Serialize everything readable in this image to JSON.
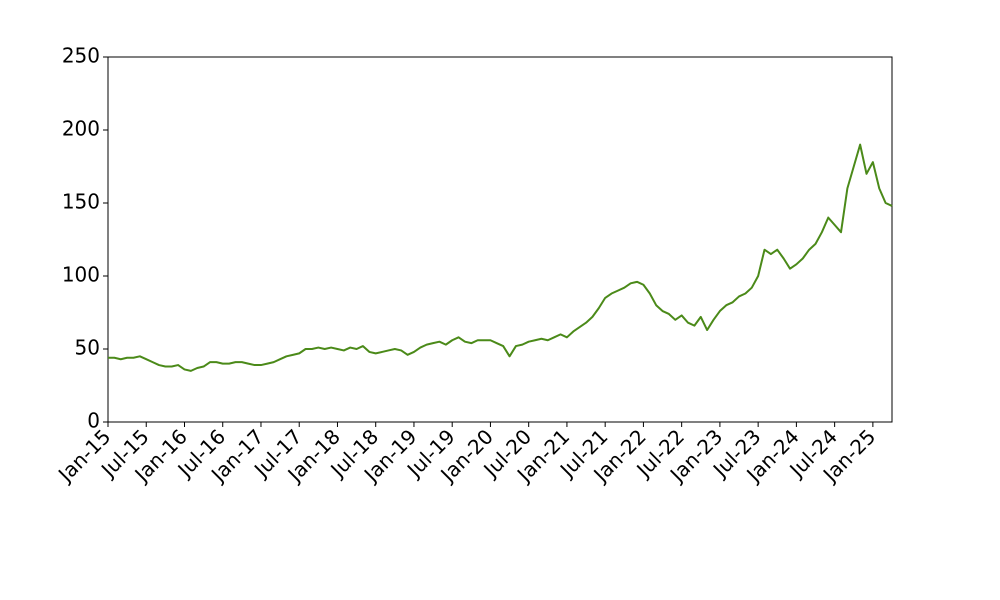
{
  "chart_data": {
    "type": "line",
    "x": [
      "2015-01",
      "2015-02",
      "2015-03",
      "2015-04",
      "2015-05",
      "2015-06",
      "2015-07",
      "2015-08",
      "2015-09",
      "2015-10",
      "2015-11",
      "2015-12",
      "2016-01",
      "2016-02",
      "2016-03",
      "2016-04",
      "2016-05",
      "2016-06",
      "2016-07",
      "2016-08",
      "2016-09",
      "2016-10",
      "2016-11",
      "2016-12",
      "2017-01",
      "2017-02",
      "2017-03",
      "2017-04",
      "2017-05",
      "2017-06",
      "2017-07",
      "2017-08",
      "2017-09",
      "2017-10",
      "2017-11",
      "2017-12",
      "2018-01",
      "2018-02",
      "2018-03",
      "2018-04",
      "2018-05",
      "2018-06",
      "2018-07",
      "2018-08",
      "2018-09",
      "2018-10",
      "2018-11",
      "2018-12",
      "2019-01",
      "2019-02",
      "2019-03",
      "2019-04",
      "2019-05",
      "2019-06",
      "2019-07",
      "2019-08",
      "2019-09",
      "2019-10",
      "2019-11",
      "2019-12",
      "2020-01",
      "2020-02",
      "2020-03",
      "2020-04",
      "2020-05",
      "2020-06",
      "2020-07",
      "2020-08",
      "2020-09",
      "2020-10",
      "2020-11",
      "2020-12",
      "2021-01",
      "2021-02",
      "2021-03",
      "2021-04",
      "2021-05",
      "2021-06",
      "2021-07",
      "2021-08",
      "2021-09",
      "2021-10",
      "2021-11",
      "2021-12",
      "2022-01",
      "2022-02",
      "2022-03",
      "2022-04",
      "2022-05",
      "2022-06",
      "2022-07",
      "2022-08",
      "2022-09",
      "2022-10",
      "2022-11",
      "2022-12",
      "2023-01",
      "2023-02",
      "2023-03",
      "2023-04",
      "2023-05",
      "2023-06",
      "2023-07",
      "2023-08",
      "2023-09",
      "2023-10",
      "2023-11",
      "2023-12",
      "2024-01",
      "2024-02",
      "2024-03",
      "2024-04",
      "2024-05",
      "2024-06",
      "2024-07",
      "2024-08",
      "2024-09",
      "2024-10",
      "2024-11",
      "2024-12",
      "2025-01",
      "2025-02",
      "2025-03",
      "2025-04"
    ],
    "series": [
      {
        "color": "#4b8a19",
        "values": [
          44,
          44,
          43,
          44,
          44,
          45,
          43,
          41,
          39,
          38,
          38,
          39,
          36,
          35,
          37,
          38,
          41,
          41,
          40,
          40,
          41,
          41,
          40,
          39,
          39,
          40,
          41,
          43,
          45,
          46,
          47,
          50,
          50,
          51,
          50,
          51,
          50,
          49,
          51,
          50,
          52,
          48,
          47,
          48,
          49,
          50,
          49,
          46,
          48,
          51,
          53,
          54,
          55,
          53,
          56,
          58,
          55,
          54,
          56,
          56,
          56,
          54,
          52,
          45,
          52,
          53,
          55,
          56,
          57,
          56,
          58,
          60,
          58,
          62,
          65,
          68,
          72,
          78,
          85,
          88,
          90,
          92,
          95,
          96,
          94,
          88,
          80,
          76,
          74,
          70,
          73,
          68,
          66,
          72,
          63,
          70,
          76,
          80,
          82,
          86,
          88,
          92,
          100,
          118,
          115,
          118,
          112,
          105,
          108,
          112,
          118,
          122,
          130,
          140,
          135,
          130,
          160,
          175,
          190,
          170,
          178,
          160,
          150,
          148
        ]
      }
    ],
    "xlim": [
      "2015-01",
      "2025-04"
    ],
    "xticks": [
      {
        "value": "2015-01",
        "label": "Jan-15"
      },
      {
        "value": "2015-07",
        "label": "Jul-15"
      },
      {
        "value": "2016-01",
        "label": "Jan-16"
      },
      {
        "value": "2016-07",
        "label": "Jul-16"
      },
      {
        "value": "2017-01",
        "label": "Jan-17"
      },
      {
        "value": "2017-07",
        "label": "Jul-17"
      },
      {
        "value": "2018-01",
        "label": "Jan-18"
      },
      {
        "value": "2018-07",
        "label": "Jul-18"
      },
      {
        "value": "2019-01",
        "label": "Jan-19"
      },
      {
        "value": "2019-07",
        "label": "Jul-19"
      },
      {
        "value": "2020-01",
        "label": "Jan-20"
      },
      {
        "value": "2020-07",
        "label": "Jul-20"
      },
      {
        "value": "2021-01",
        "label": "Jan-21"
      },
      {
        "value": "2021-07",
        "label": "Jul-21"
      },
      {
        "value": "2022-01",
        "label": "Jan-22"
      },
      {
        "value": "2022-07",
        "label": "Jul-22"
      },
      {
        "value": "2023-01",
        "label": "Jan-23"
      },
      {
        "value": "2023-07",
        "label": "Jul-23"
      },
      {
        "value": "2024-01",
        "label": "Jan-24"
      },
      {
        "value": "2024-07",
        "label": "Jul-24"
      },
      {
        "value": "2025-01",
        "label": "Jan-25"
      }
    ],
    "ylim": [
      0,
      250
    ],
    "yticks": [
      0,
      50,
      100,
      150,
      200,
      250
    ],
    "grid": false
  }
}
